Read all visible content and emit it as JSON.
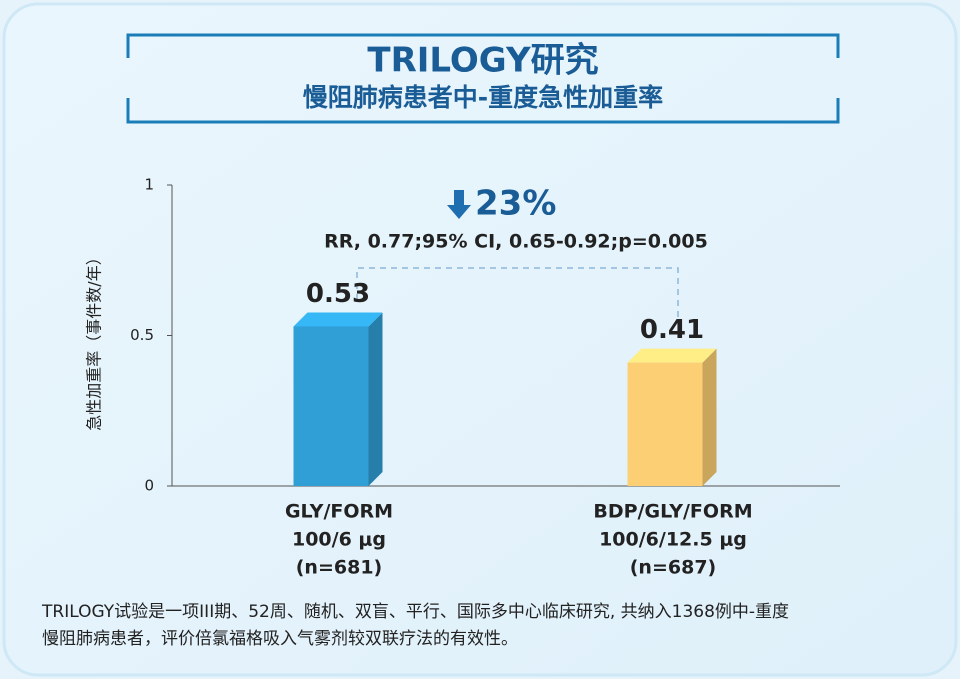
{
  "chart_data": {
    "type": "bar3d",
    "title": "TRILOGY研究",
    "subtitle": "慢阻肺病患者中-重度急性加重率",
    "y_label": "急性加重率（事件数/年）",
    "categories": [
      [
        "GLY/FORM",
        "100/6 μg",
        "(n=681)"
      ],
      [
        "BDP/GLY/FORM",
        "100/6/12.5 μg",
        "(n=687)"
      ]
    ],
    "values": [
      0.53,
      0.41
    ],
    "colors": [
      "#2f9fd6",
      "#fccf74"
    ],
    "ylim": [
      0,
      1
    ],
    "yticks": [
      0,
      0.5,
      1
    ],
    "annotation": {
      "change": "23%",
      "stats": "RR, 0.77;95% CI, 0.65-0.92;p=0.005"
    },
    "footnote": [
      "TRILOGY试验是一项III期、52周、随机、双盲、平行、国际多中心临床研究, 共纳入1368例中-重度",
      "慢阻肺病患者，评价倍氯福格吸入气雾剂较双联疗法的有效性。"
    ]
  }
}
